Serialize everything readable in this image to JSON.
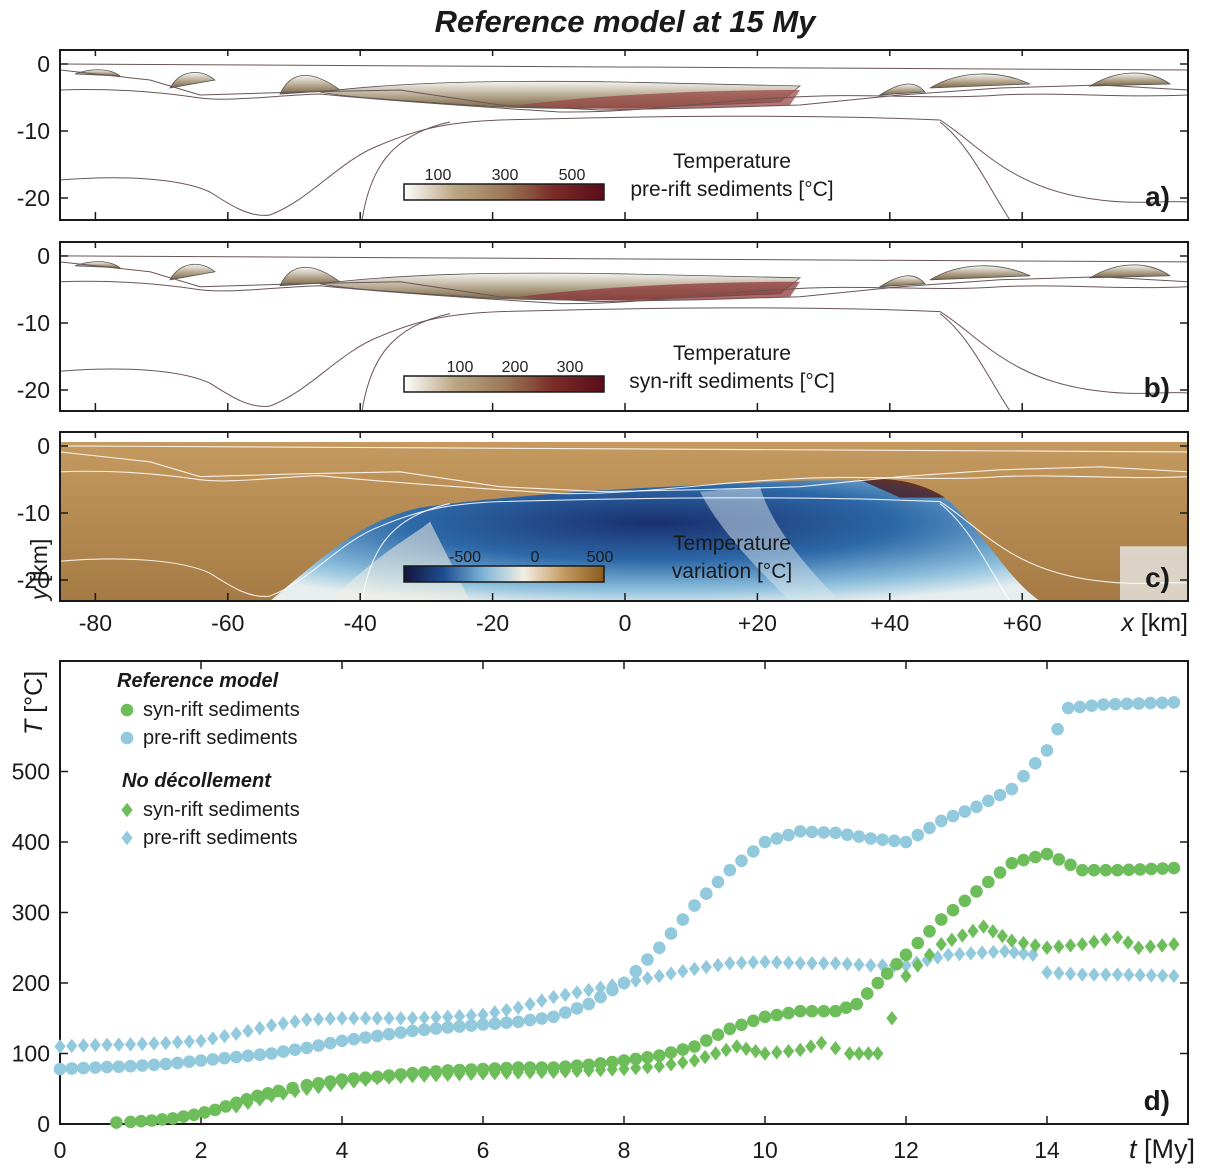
{
  "figure_title": "Reference model at 15 My",
  "panels": [
    {
      "tag": "a)",
      "label_line1": "Temperature",
      "label_line2": "pre-rift sediments [°C]",
      "colorbar_ticks": [
        "100",
        "300",
        "500"
      ],
      "colorbar_colors": [
        "#ffffff",
        "#bba784",
        "#9a7a58",
        "#7a2c28",
        "#5a0d1a"
      ]
    },
    {
      "tag": "b)",
      "label_line1": "Temperature",
      "label_line2": "syn-rift sediments [°C]",
      "colorbar_ticks": [
        "100",
        "200",
        "300"
      ],
      "colorbar_colors": [
        "#ffffff",
        "#bba784",
        "#9a7a58",
        "#7a2c28",
        "#5a0d1a"
      ]
    },
    {
      "tag": "c)",
      "label_line1": "Temperature",
      "label_line2": "variation [°C]",
      "colorbar_ticks": [
        "-500",
        "0",
        "500"
      ],
      "colorbar_colors": [
        "#14143c",
        "#1e4f92",
        "#7fb6d8",
        "#f3efe1",
        "#c49a60",
        "#8a5a1e"
      ]
    }
  ],
  "section_axes": {
    "y_ticks": [
      "0",
      "-10",
      "-20"
    ],
    "x_ticks": [
      "-80",
      "-60",
      "-40",
      "-20",
      "0",
      "+20",
      "+40",
      "+60"
    ],
    "x_label_sym": "x",
    "x_label_unit": "[km]",
    "y_label_sym": "y",
    "y_label_unit": "[km]"
  },
  "chart_data": {
    "type": "scatter",
    "tag": "d)",
    "xlabel_sym": "t",
    "xlabel_unit": "[My]",
    "ylabel_sym": "T",
    "ylabel_unit": "[°C]",
    "xlim": [
      0,
      16
    ],
    "ylim": [
      0,
      600
    ],
    "x_ticks": [
      "0",
      "2",
      "4",
      "6",
      "8",
      "10",
      "12",
      "14"
    ],
    "y_ticks": [
      "0",
      "100",
      "200",
      "300",
      "400",
      "500"
    ],
    "legend_groups": [
      {
        "title": "Reference model",
        "items": [
          "syn-rift sediments",
          "pre-rift sediments"
        ]
      },
      {
        "title": "No décollement",
        "items": [
          "syn-rift sediments",
          "pre-rift sediments"
        ]
      }
    ],
    "colors": {
      "syn": "#6dbd5a",
      "pre": "#92c9dc"
    },
    "series": [
      {
        "group": "Reference model",
        "name": "syn-rift sediments",
        "marker": "circle",
        "color": "#6dbd5a",
        "points": [
          [
            0.8,
            2
          ],
          [
            1.0,
            3
          ],
          [
            1.3,
            5
          ],
          [
            1.6,
            8
          ],
          [
            1.9,
            13
          ],
          [
            2.2,
            20
          ],
          [
            2.5,
            30
          ],
          [
            2.8,
            40
          ],
          [
            3.1,
            47
          ],
          [
            3.5,
            55
          ],
          [
            4,
            63
          ],
          [
            4.5,
            67
          ],
          [
            5,
            72
          ],
          [
            5.5,
            76
          ],
          [
            6,
            78
          ],
          [
            6.5,
            80
          ],
          [
            7,
            80
          ],
          [
            7.5,
            84
          ],
          [
            8,
            90
          ],
          [
            8.5,
            97
          ],
          [
            9,
            110
          ],
          [
            9.5,
            135
          ],
          [
            10,
            152
          ],
          [
            10.5,
            160
          ],
          [
            11,
            160
          ],
          [
            11.3,
            170
          ],
          [
            11.6,
            200
          ],
          [
            12,
            240
          ],
          [
            12.5,
            290
          ],
          [
            13,
            330
          ],
          [
            13.5,
            370
          ],
          [
            14,
            383
          ],
          [
            14.5,
            360
          ],
          [
            15,
            360
          ],
          [
            15.8,
            363
          ]
        ]
      },
      {
        "group": "Reference model",
        "name": "pre-rift sediments",
        "marker": "circle",
        "color": "#92c9dc",
        "points": [
          [
            0,
            78
          ],
          [
            0.5,
            80
          ],
          [
            1,
            82
          ],
          [
            1.5,
            85
          ],
          [
            2,
            90
          ],
          [
            2.5,
            95
          ],
          [
            3,
            100
          ],
          [
            3.5,
            108
          ],
          [
            4,
            118
          ],
          [
            4.5,
            125
          ],
          [
            5,
            132
          ],
          [
            5.5,
            137
          ],
          [
            6,
            141
          ],
          [
            6.5,
            145
          ],
          [
            7,
            152
          ],
          [
            7.5,
            170
          ],
          [
            8,
            200
          ],
          [
            8.5,
            250
          ],
          [
            9,
            310
          ],
          [
            9.5,
            360
          ],
          [
            10,
            400
          ],
          [
            10.5,
            415
          ],
          [
            11,
            413
          ],
          [
            11.5,
            405
          ],
          [
            12,
            400
          ],
          [
            12.5,
            430
          ],
          [
            13,
            450
          ],
          [
            13.5,
            475
          ],
          [
            14,
            530
          ],
          [
            14.3,
            590
          ],
          [
            14.8,
            595
          ],
          [
            15.8,
            598
          ]
        ]
      },
      {
        "group": "No décollement",
        "name": "syn-rift sediments",
        "marker": "diamond",
        "color": "#6dbd5a",
        "points": [
          [
            2.5,
            25
          ],
          [
            3,
            40
          ],
          [
            3.5,
            50
          ],
          [
            4,
            58
          ],
          [
            4.5,
            65
          ],
          [
            5,
            68
          ],
          [
            5.5,
            70
          ],
          [
            6,
            72
          ],
          [
            6.5,
            73
          ],
          [
            7,
            74
          ],
          [
            7.5,
            76
          ],
          [
            8,
            78
          ],
          [
            8.5,
            82
          ],
          [
            9,
            90
          ],
          [
            9.3,
            100
          ],
          [
            9.6,
            110
          ],
          [
            10,
            100
          ],
          [
            10.5,
            105
          ],
          [
            10.8,
            115
          ],
          [
            11.2,
            100
          ],
          [
            11.6,
            100
          ],
          [
            11.8,
            150
          ],
          [
            12,
            210
          ],
          [
            12.5,
            255
          ],
          [
            13.1,
            280
          ],
          [
            13.5,
            260
          ],
          [
            14,
            250
          ],
          [
            14.5,
            255
          ],
          [
            15,
            265
          ],
          [
            15.3,
            250
          ],
          [
            15.8,
            255
          ]
        ]
      },
      {
        "group": "No décollement",
        "name": "pre-rift sediments",
        "marker": "diamond",
        "color": "#92c9dc",
        "points": [
          [
            0,
            110
          ],
          [
            0.5,
            112
          ],
          [
            1,
            113
          ],
          [
            1.5,
            115
          ],
          [
            2,
            118
          ],
          [
            2.5,
            128
          ],
          [
            3,
            140
          ],
          [
            3.5,
            148
          ],
          [
            4,
            150
          ],
          [
            4.5,
            150
          ],
          [
            5,
            150
          ],
          [
            5.5,
            152
          ],
          [
            6,
            155
          ],
          [
            6.5,
            165
          ],
          [
            7,
            180
          ],
          [
            7.5,
            190
          ],
          [
            8,
            200
          ],
          [
            8.5,
            210
          ],
          [
            9,
            220
          ],
          [
            9.5,
            228
          ],
          [
            10,
            230
          ],
          [
            10.5,
            228
          ],
          [
            11,
            228
          ],
          [
            11.5,
            225
          ],
          [
            12,
            225
          ],
          [
            12.6,
            240
          ],
          [
            13.4,
            245
          ],
          [
            13.8,
            240
          ],
          [
            14,
            215
          ],
          [
            14.5,
            212
          ],
          [
            15,
            212
          ],
          [
            15.8,
            210
          ]
        ]
      }
    ]
  }
}
